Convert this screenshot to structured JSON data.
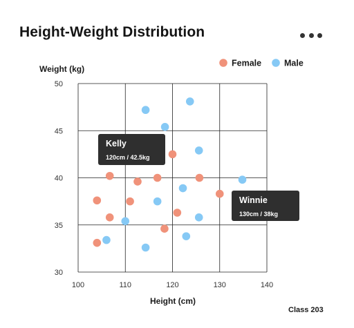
{
  "header": {
    "title": "Height-Weight Distribution",
    "menu_icon": "more-horizontal-icon"
  },
  "footer": {
    "label": "Class 203"
  },
  "colors": {
    "female": "#f0927a",
    "male": "#86c9f5",
    "grid": "#222222",
    "tooltip_bg": "#2f2f2f"
  },
  "chart_data": {
    "type": "scatter",
    "title": "Height-Weight Distribution",
    "xlabel": "Height (cm)",
    "ylabel": "Weight (kg)",
    "xlim": [
      100,
      140
    ],
    "ylim": [
      30,
      50
    ],
    "xticks": [
      100,
      110,
      120,
      130,
      140
    ],
    "yticks": [
      30,
      35,
      40,
      45,
      50
    ],
    "grid": true,
    "legend_position": "top-right",
    "series": [
      {
        "name": "Female",
        "color": "#f0927a",
        "points": [
          {
            "x": 104,
            "y": 37.6
          },
          {
            "x": 104,
            "y": 33.1
          },
          {
            "x": 106.7,
            "y": 40.2
          },
          {
            "x": 106.7,
            "y": 35.8
          },
          {
            "x": 111,
            "y": 37.5
          },
          {
            "x": 112.6,
            "y": 39.6
          },
          {
            "x": 116.8,
            "y": 40.0
          },
          {
            "x": 118.3,
            "y": 34.6
          },
          {
            "x": 120,
            "y": 42.5
          },
          {
            "x": 121,
            "y": 36.3
          },
          {
            "x": 125.7,
            "y": 40.0
          },
          {
            "x": 130,
            "y": 38.3
          }
        ]
      },
      {
        "name": "Male",
        "color": "#86c9f5",
        "points": [
          {
            "x": 114.3,
            "y": 47.2
          },
          {
            "x": 118.4,
            "y": 45.4
          },
          {
            "x": 123.7,
            "y": 48.1
          },
          {
            "x": 125.6,
            "y": 42.9
          },
          {
            "x": 122.2,
            "y": 38.9
          },
          {
            "x": 116.8,
            "y": 37.5
          },
          {
            "x": 110,
            "y": 35.4
          },
          {
            "x": 125.6,
            "y": 35.8
          },
          {
            "x": 106,
            "y": 33.4
          },
          {
            "x": 114.3,
            "y": 32.6
          },
          {
            "x": 122.9,
            "y": 33.8
          },
          {
            "x": 134.8,
            "y": 39.8
          }
        ]
      }
    ],
    "annotations": [
      {
        "name": "Kelly",
        "detail": "120cm / 42.5kg",
        "x": 120,
        "y": 42.5
      },
      {
        "name": "Winnie",
        "detail": "130cm / 38kg",
        "x": 130,
        "y": 38
      }
    ]
  }
}
